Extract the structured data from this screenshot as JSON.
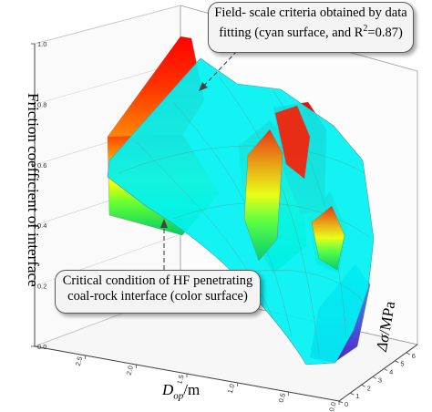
{
  "chart_data": {
    "type": "surface3d",
    "title": "",
    "zlabel": "Friction coefficient of interface",
    "xlabel_main": "D",
    "xlabel_sub": "op",
    "xlabel_unit": "/m",
    "ylabel_delta": "Δσ",
    "ylabel_unit": "/MPa",
    "z_ticks": [
      "0.0",
      "0.2",
      "0.4",
      "0.6",
      "0.8",
      "1.0"
    ],
    "x_ticks": [
      "2.5",
      "2.0",
      "1.5",
      "1.0",
      "0.5",
      "0.0"
    ],
    "y_ticks": [
      "0",
      "1",
      "2",
      "3",
      "4",
      "5",
      "6"
    ],
    "zlim": [
      0,
      1
    ],
    "xlim": [
      3.0,
      0.0
    ],
    "ylim": [
      0,
      7
    ],
    "surfaces": [
      {
        "name": "cyan",
        "color": "#00ffff"
      },
      {
        "name": "color",
        "colormap": "rainbow"
      }
    ],
    "annotations": {
      "top_line1": "Field- scale criteria obtained by data",
      "top_line2a": "fitting (cyan surface, and R",
      "top_sup": "2",
      "top_line2b": "=0.87)",
      "bottom_line1": "Critical condition of HF penetrating",
      "bottom_line2": "coal-rock interface (color surface)"
    }
  }
}
